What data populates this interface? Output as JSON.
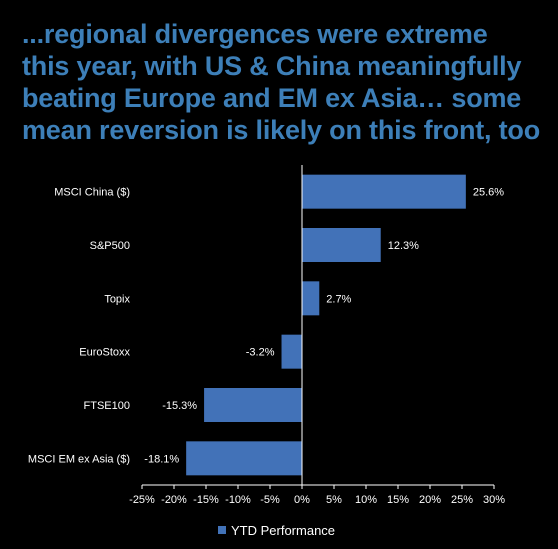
{
  "title_lines": [
    "...regional divergences were extreme",
    "this year, with US & China meaningfully",
    "beating Europe and EM ex Asia… some",
    "mean reversion is likely on this front, too"
  ],
  "colors": {
    "bar": "#4272b8",
    "title": "#3d7fb8",
    "background": "#000000",
    "axis": "#ffffff"
  },
  "chart_data": {
    "type": "bar",
    "orientation": "horizontal",
    "categories": [
      "MSCI China ($)",
      "S&P500",
      "Topix",
      "EuroStoxx",
      "FTSE100",
      "MSCI EM ex Asia ($)"
    ],
    "series": [
      {
        "name": "YTD Performance",
        "values": [
          25.6,
          12.3,
          2.7,
          -3.2,
          -15.3,
          -18.1
        ]
      }
    ],
    "data_labels": [
      "25.6%",
      "12.3%",
      "2.7%",
      "-3.2%",
      "-15.3%",
      "-18.1%"
    ],
    "xlim": [
      -25,
      30
    ],
    "xticks": [
      -25,
      -20,
      -15,
      -10,
      -5,
      0,
      5,
      10,
      15,
      20,
      25,
      30
    ],
    "xtick_labels": [
      "-25%",
      "-20%",
      "-15%",
      "-10%",
      "-5%",
      "0%",
      "5%",
      "10%",
      "15%",
      "20%",
      "25%",
      "30%"
    ],
    "legend_position": "bottom",
    "grid": false
  }
}
